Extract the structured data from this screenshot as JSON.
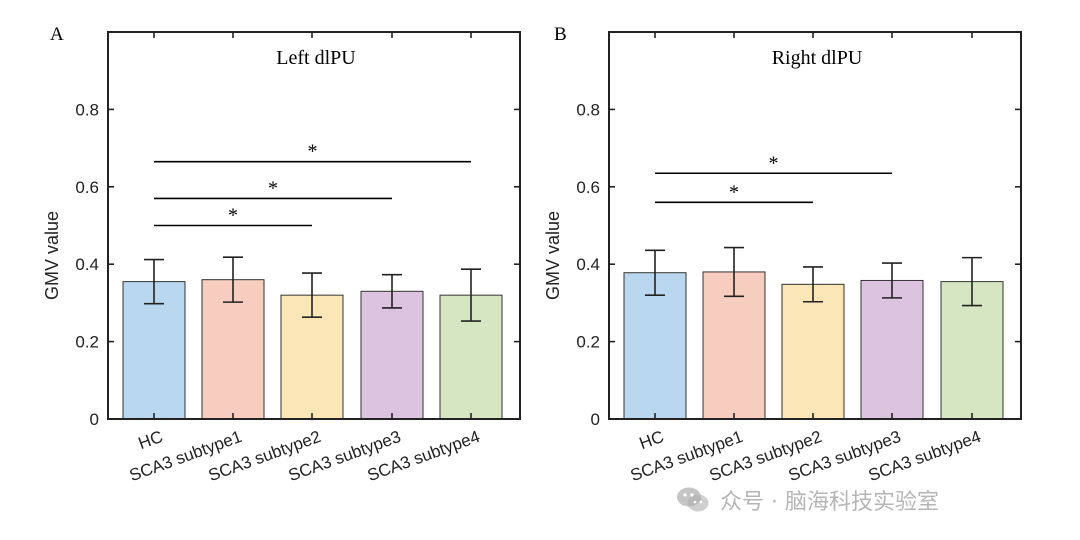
{
  "chart_data": [
    {
      "type": "bar",
      "panel_label": "A",
      "title": "Left dlPU",
      "ylabel": "GMV value",
      "ylim": [
        0,
        1
      ],
      "yticks": [
        0,
        0.2,
        0.4,
        0.6,
        0.8
      ],
      "ytick_labels": [
        "0",
        "0.2",
        "0.4",
        "0.6",
        "0.8"
      ],
      "categories": [
        "HC",
        "SCA3 subtype1",
        "SCA3 subtype2",
        "SCA3 subtype3",
        "SCA3 subtype4"
      ],
      "values": [
        0.355,
        0.36,
        0.32,
        0.33,
        0.32
      ],
      "errors": [
        0.057,
        0.058,
        0.057,
        0.043,
        0.067
      ],
      "colors": [
        "#b9d7ee",
        "#f6cdbf",
        "#fbe6b8",
        "#dcc3e0",
        "#d7e6c2"
      ],
      "significance": [
        {
          "from": 0,
          "to": 2,
          "y": 0.5,
          "label": "*"
        },
        {
          "from": 0,
          "to": 3,
          "y": 0.57,
          "label": "*"
        },
        {
          "from": 0,
          "to": 4,
          "y": 0.665,
          "label": "*"
        }
      ]
    },
    {
      "type": "bar",
      "panel_label": "B",
      "title": "Right dlPU",
      "ylabel": "GMV value",
      "ylim": [
        0,
        1
      ],
      "yticks": [
        0,
        0.2,
        0.4,
        0.6,
        0.8
      ],
      "ytick_labels": [
        "0",
        "0.2",
        "0.4",
        "0.6",
        "0.8"
      ],
      "categories": [
        "HC",
        "SCA3 subtype1",
        "SCA3 subtype2",
        "SCA3 subtype3",
        "SCA3 subtype4"
      ],
      "values": [
        0.378,
        0.38,
        0.348,
        0.358,
        0.355
      ],
      "errors": [
        0.058,
        0.063,
        0.045,
        0.045,
        0.062
      ],
      "colors": [
        "#b9d7ee",
        "#f6cdbf",
        "#fbe6b8",
        "#dcc3e0",
        "#d7e6c2"
      ],
      "significance": [
        {
          "from": 0,
          "to": 2,
          "y": 0.56,
          "label": "*"
        },
        {
          "from": 0,
          "to": 3,
          "y": 0.635,
          "label": "*"
        }
      ]
    }
  ],
  "watermark": {
    "icon": "wechat-icon",
    "text": "众号 · 脑海科技实验室"
  }
}
